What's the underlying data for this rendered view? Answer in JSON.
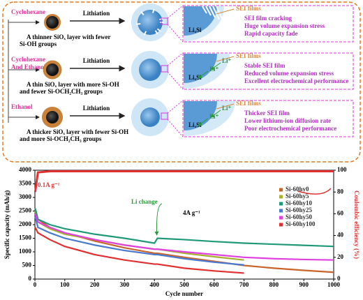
{
  "diagram": {
    "process": "Lithiation",
    "rows": [
      {
        "solvent": [
          "Cyclohexane"
        ],
        "description": [
          "A thinner SiOₓ layer with fewer",
          "Si-OH groups"
        ],
        "core": "LiₓSi",
        "labels": [
          "SEI films"
        ],
        "notes": [
          "SEI film cracking",
          "Huge volume expansion stress",
          "Rapid capacity fade"
        ]
      },
      {
        "solvent": [
          "Cyclohexane",
          "And Ethanol"
        ],
        "description": [
          "A thin SiOₓ layer with more Si-OH",
          "and fewer Si-OCH₂CH₃ groups"
        ],
        "core": "LiₓSi",
        "labels": [
          "SEI films",
          "Li⁺",
          "Li⁺"
        ],
        "notes": [
          "Stable SEI film",
          "Reduced volume expansion stress",
          "Excellent electrochemical performance"
        ]
      },
      {
        "solvent": [
          "Ethanol"
        ],
        "description": [
          "A thicker SiOₓ layer with fewer Si-OH",
          "and more Si-OCH₂CH₃ groups"
        ],
        "core": "LiₓSi",
        "labels": [
          "SEI films",
          "Li⁺",
          "Li⁺"
        ],
        "notes": [
          "Thicker SEI film",
          "Lower lithium-ion diffusion rate",
          "Poor electrochemical performance"
        ]
      }
    ]
  },
  "chart_data": {
    "type": "line",
    "x_label": "Cycle number",
    "y_label": "Specific capacity (mAh/g)",
    "y2_label": "Coulombic efficiency (%)",
    "annotations": [
      "0.1A g⁻¹",
      "4A g⁻¹",
      "Li change"
    ],
    "x": [
      1,
      10,
      50,
      100,
      200,
      300,
      400,
      410,
      500,
      600,
      700,
      800,
      900,
      1000
    ],
    "xlim": [
      0,
      1000
    ],
    "xticks": [
      0,
      100,
      200,
      300,
      400,
      500,
      600,
      700,
      800,
      900,
      1000
    ],
    "ylim": [
      0,
      4000
    ],
    "yticks": [
      0,
      500,
      1000,
      1500,
      2000,
      2500,
      3000,
      3500,
      4000
    ],
    "y2lim": [
      0,
      100
    ],
    "y2ticks": [
      0,
      20,
      40,
      60,
      80,
      100
    ],
    "legend": "upper right",
    "series": [
      {
        "name": "Si-60hy0",
        "color": "#c8642a",
        "values": [
          2600,
          2200,
          1900,
          1700,
          1400,
          1150,
          950,
          950,
          800,
          650,
          500,
          400,
          320,
          250
        ]
      },
      {
        "name": "Si-60hy5",
        "color": "#a8b030",
        "values": [
          2500,
          2100,
          1850,
          1650,
          1450,
          1250,
          1100,
          1100,
          950,
          820,
          700,
          null,
          null,
          null
        ]
      },
      {
        "name": "Si-60hy10",
        "color": "#1f9a78",
        "values": [
          2600,
          2200,
          2000,
          1850,
          1650,
          1500,
          1320,
          1500,
          1450,
          1380,
          1320,
          1280,
          1240,
          1200
        ]
      },
      {
        "name": "Si-60hy25",
        "color": "#4a7ad0",
        "values": [
          2300,
          1900,
          1700,
          1500,
          1250,
          1050,
          900,
          900,
          750,
          620,
          520,
          null,
          null,
          null
        ]
      },
      {
        "name": "Si-60hy50",
        "color": "#e040e0",
        "values": [
          2400,
          2100,
          1900,
          1700,
          1450,
          1250,
          1100,
          1100,
          1000,
          900,
          800,
          750,
          720,
          700
        ]
      },
      {
        "name": "Si-60hy100",
        "color": "#e03030",
        "values": [
          1900,
          1700,
          1450,
          1200,
          900,
          700,
          550,
          550,
          400,
          300,
          220,
          null,
          null,
          null
        ]
      }
    ],
    "efficiency": {
      "color": "#e03030",
      "axis": "y2",
      "values": [
        80,
        98,
        99,
        99,
        99,
        99,
        99,
        99,
        99,
        99,
        99,
        99,
        99,
        99
      ]
    }
  }
}
